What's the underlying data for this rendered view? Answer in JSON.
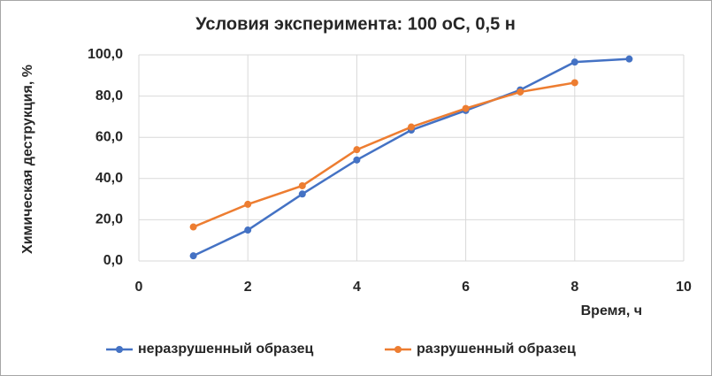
{
  "chart_data": {
    "type": "line",
    "title": "Условия эксперимента: 100 оС, 0,5 н",
    "xlabel": "Время, ч",
    "ylabel": "Химическая деструкция, %",
    "series": [
      {
        "name": "неразрушенный образец",
        "color": "#4472c4",
        "x": [
          1,
          2,
          3,
          4,
          5,
          6,
          7,
          8,
          9
        ],
        "values": [
          2.5,
          15,
          32.5,
          49,
          63.5,
          73,
          83,
          96.5,
          98
        ]
      },
      {
        "name": "разрушенный образец",
        "color": "#ed7d31",
        "x": [
          1,
          2,
          3,
          4,
          5,
          6,
          7,
          8
        ],
        "values": [
          16.5,
          27.5,
          36.5,
          54,
          65,
          74,
          82,
          86.5
        ]
      }
    ],
    "xlim": [
      0,
      10
    ],
    "xticks": [
      0,
      2,
      4,
      6,
      8,
      10
    ],
    "ylim": [
      0,
      100
    ],
    "yticks": [
      {
        "value": 0,
        "label": "0,0"
      },
      {
        "value": 20,
        "label": "20,0"
      },
      {
        "value": 40,
        "label": "40,0"
      },
      {
        "value": 60,
        "label": "60,0"
      },
      {
        "value": 80,
        "label": "80,0"
      },
      {
        "value": 100,
        "label": "100,0"
      }
    ],
    "grid": true,
    "legend": "bottom"
  }
}
